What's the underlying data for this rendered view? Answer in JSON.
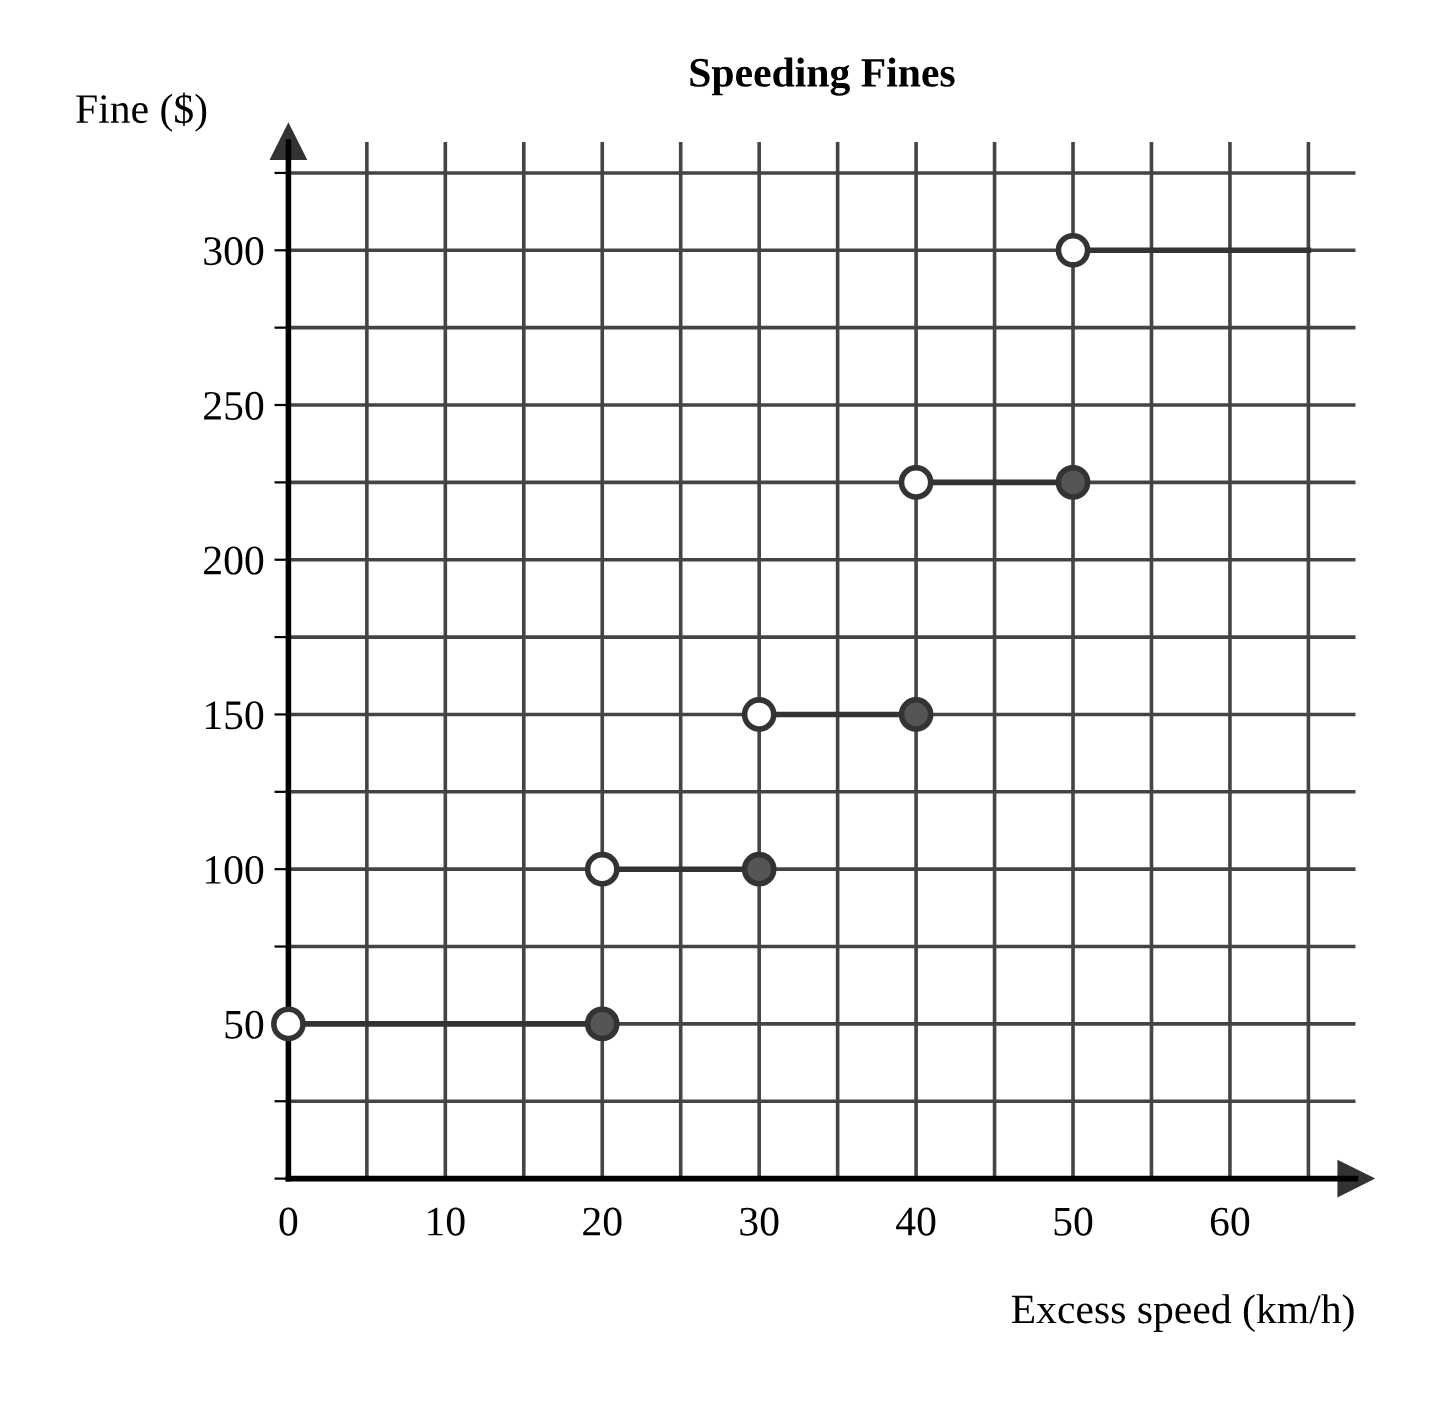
{
  "chart_data": {
    "type": "line",
    "title": "Speeding Fines",
    "xlabel": "Excess speed (km/h)",
    "ylabel": "Fine ($)",
    "xlim": [
      0,
      68
    ],
    "ylim": [
      0,
      335
    ],
    "xticks": [
      {
        "value": 0,
        "label": "0"
      },
      {
        "value": 5,
        "label": null
      },
      10,
      {
        "value": 15,
        "label": null
      },
      20,
      {
        "value": 25,
        "label": null
      },
      30,
      {
        "value": 35,
        "label": null
      },
      40,
      {
        "value": 45,
        "label": null
      },
      50,
      {
        "value": 55,
        "label": null
      },
      60,
      {
        "value": 65,
        "label": null
      }
    ],
    "yticks": [
      {
        "value": 0,
        "label": null
      },
      {
        "value": 25,
        "label": null
      },
      50,
      {
        "value": 75,
        "label": null
      },
      100,
      {
        "value": 125,
        "label": null
      },
      150,
      {
        "value": 175,
        "label": null
      },
      200,
      {
        "value": 225,
        "label": null
      },
      250,
      {
        "value": 275,
        "label": null
      },
      300,
      {
        "value": 325,
        "label": null
      }
    ],
    "grid": true,
    "series": [
      {
        "color": "#333333",
        "x": [
          0,
          20
        ],
        "values": [
          50,
          50
        ]
      },
      {
        "color": "#333333",
        "x": [
          20,
          30
        ],
        "values": [
          100,
          100
        ]
      },
      {
        "color": "#333333",
        "x": [
          30,
          40
        ],
        "values": [
          150,
          150
        ]
      },
      {
        "color": "#333333",
        "x": [
          40,
          50
        ],
        "values": [
          225,
          225
        ]
      },
      {
        "color": "#333333",
        "x": [
          50,
          65
        ],
        "values": [
          300,
          300
        ]
      },
      {
        "type": "scatter",
        "marker": "circle",
        "color": "#ffffff",
        "x": [
          0,
          20,
          30,
          40,
          50
        ],
        "values": [
          50,
          100,
          150,
          225,
          300
        ]
      },
      {
        "type": "scatter",
        "marker": "circle",
        "color": "#555555",
        "x": [
          20,
          30,
          40,
          50
        ],
        "values": [
          50,
          100,
          150,
          225
        ]
      }
    ]
  }
}
